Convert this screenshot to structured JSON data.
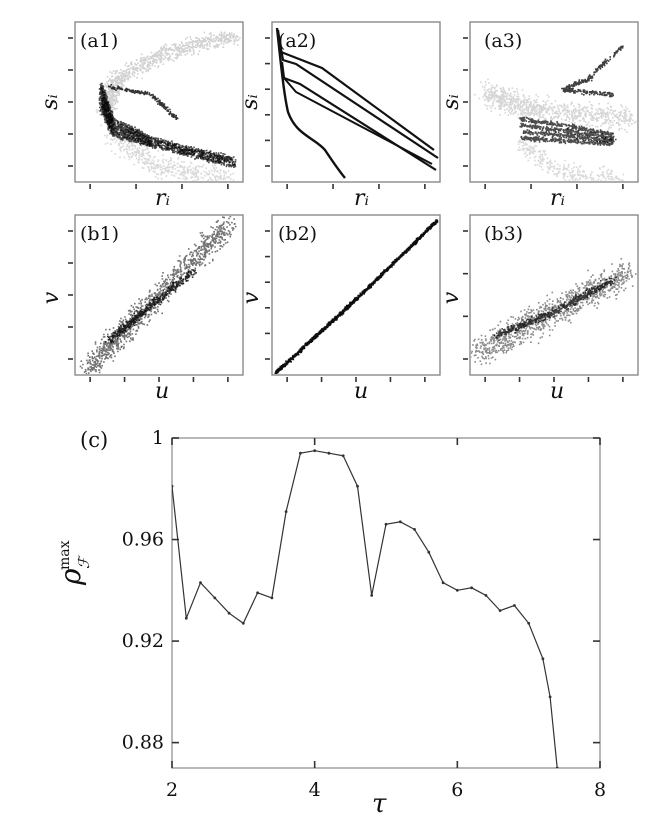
{
  "panels": {
    "a1": {
      "label": "(a1)",
      "xlabel": "rᵢ",
      "ylabel": "sᵢ"
    },
    "a2": {
      "label": "(a2)",
      "xlabel": "rᵢ",
      "ylabel": "sᵢ"
    },
    "a3": {
      "label": "(a3)",
      "xlabel": "rᵢ",
      "ylabel": "sᵢ"
    },
    "b1": {
      "label": "(b1)",
      "xlabel": "u",
      "ylabel": "v"
    },
    "b2": {
      "label": "(b2)",
      "xlabel": "u",
      "ylabel": "v"
    },
    "b3": {
      "label": "(b3)",
      "xlabel": "u",
      "ylabel": "v"
    }
  },
  "chart_data": {
    "type": "line",
    "panel_label": "(c)",
    "xlabel": "τ",
    "ylabel": "ρ",
    "ylabel_sub": "ℱ",
    "ylabel_sup": "max",
    "xlim": [
      2,
      8
    ],
    "ylim": [
      0.87,
      1.0
    ],
    "xticks": [
      "2",
      "4",
      "6",
      "8"
    ],
    "yticks": [
      "0.88",
      "0.92",
      "0.96",
      "1"
    ],
    "ytick_values": [
      0.88,
      0.92,
      0.96,
      1.0
    ],
    "series": [
      {
        "x": [
          2.0,
          2.2,
          2.4,
          2.6,
          2.8,
          3.0,
          3.2,
          3.4,
          3.6,
          3.8,
          4.0,
          4.2,
          4.4,
          4.6,
          4.8,
          5.0,
          5.2,
          5.4,
          5.6,
          5.8,
          6.0,
          6.2,
          6.4,
          6.6,
          6.8,
          7.0,
          7.2,
          7.3,
          7.4
        ],
        "y": [
          0.981,
          0.929,
          0.943,
          0.937,
          0.931,
          0.927,
          0.939,
          0.937,
          0.971,
          0.994,
          0.995,
          0.994,
          0.993,
          0.981,
          0.938,
          0.966,
          0.967,
          0.964,
          0.955,
          0.943,
          0.94,
          0.941,
          0.938,
          0.932,
          0.934,
          0.927,
          0.913,
          0.898,
          0.87
        ]
      }
    ]
  }
}
